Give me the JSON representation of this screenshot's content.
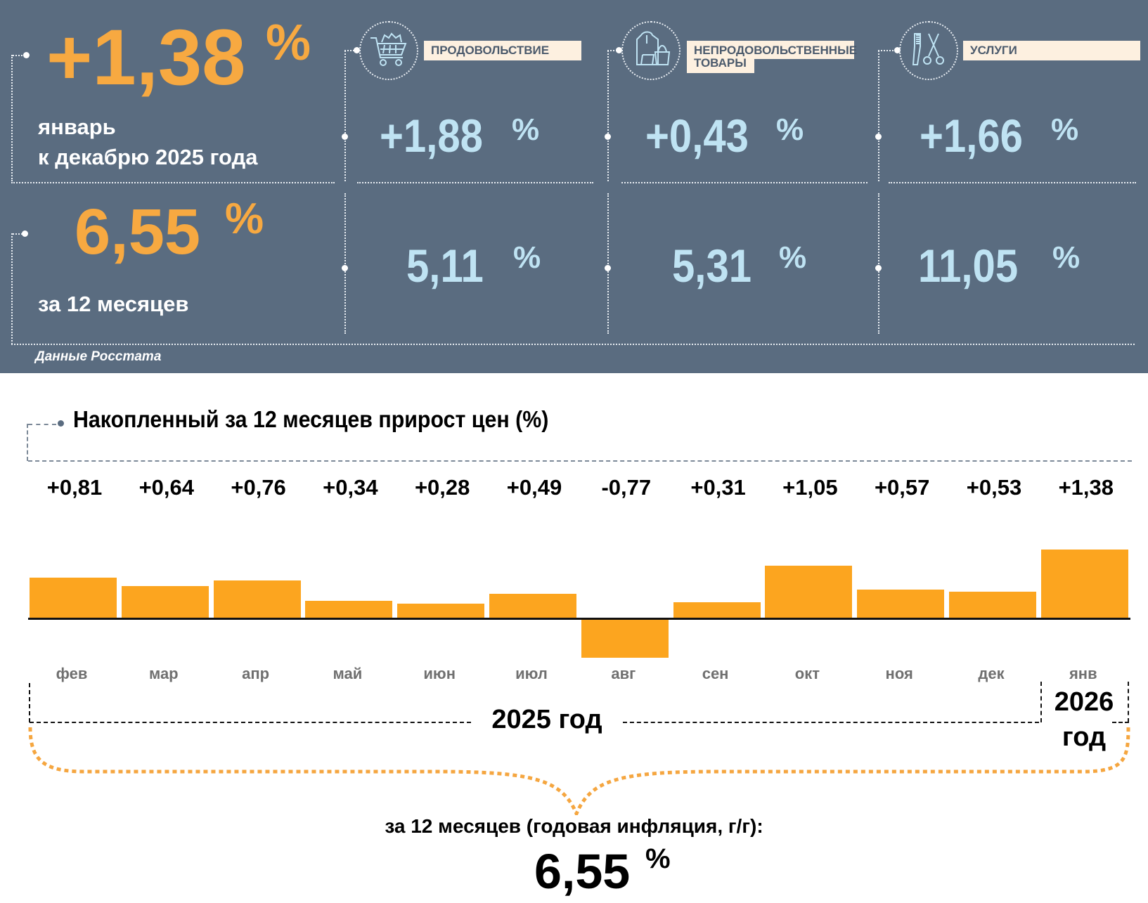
{
  "summary": {
    "monthly": {
      "value": "+1,38",
      "unit": "%",
      "line1": "январь",
      "line2": "к декабрю 2025 года"
    },
    "annual": {
      "value": "6,55",
      "unit": "%",
      "label": "за 12 месяцев"
    },
    "source": "Данные Росстата"
  },
  "categories": [
    {
      "name": "ПРОДОВОЛЬСТВИЕ",
      "icon": "shopping-cart-icon",
      "monthly": "+1,88",
      "annual": "5,11",
      "unit": "%"
    },
    {
      "name_line1": "НЕПРОДОВОЛЬСТВЕННЫЕ",
      "name_line2": "ТОВАРЫ",
      "icon": "clothes-bag-icon",
      "monthly": "+0,43",
      "annual": "5,31",
      "unit": "%"
    },
    {
      "name": "УСЛУГИ",
      "icon": "comb-scissors-icon",
      "monthly": "+1,66",
      "annual": "11,05",
      "unit": "%"
    }
  ],
  "colors": {
    "panel": "#5a6c80",
    "accent_orange": "#f7a941",
    "accent_blue": "#bfe3f3",
    "bar": "#fca51f",
    "label_bg": "#fdf0e0"
  },
  "chart_data": {
    "type": "bar",
    "title": "Накопленный за 12 месяцев прирост цен (%)",
    "categories": [
      "фев",
      "мар",
      "апр",
      "май",
      "июн",
      "июл",
      "авг",
      "сен",
      "окт",
      "ноя",
      "дек",
      "янв"
    ],
    "values": [
      0.81,
      0.64,
      0.76,
      0.34,
      0.28,
      0.49,
      -0.77,
      0.31,
      1.05,
      0.57,
      0.53,
      1.38
    ],
    "value_labels": [
      "+0,81",
      "+0,64",
      "+0,76",
      "+0,34",
      "+0,28",
      "+0,49",
      "-0,77",
      "+0,31",
      "+1,05",
      "+0,57",
      "+0,53",
      "+1,38"
    ],
    "ylim": [
      -0.8,
      1.4
    ],
    "grid": false,
    "year_groups": [
      {
        "label": "2025 год",
        "from": "фев",
        "to": "дек"
      },
      {
        "label_line1": "2026",
        "label_line2": "год",
        "from": "янв",
        "to": "янв"
      }
    ],
    "total_label": "за 12 месяцев (годовая инфляция, г/г):",
    "total_value": "6,55",
    "total_unit": "%"
  }
}
